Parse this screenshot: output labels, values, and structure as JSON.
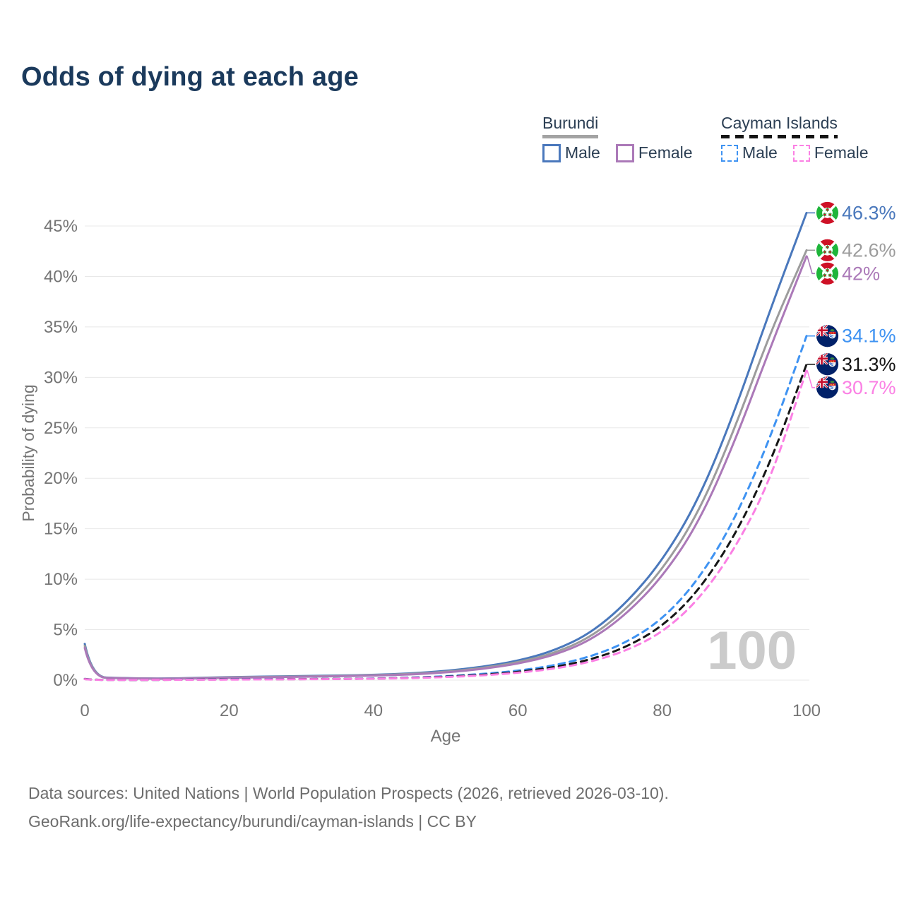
{
  "title": "Odds of dying at each age",
  "legend": {
    "groups": [
      {
        "country": "Burundi",
        "line_style": "solid",
        "underline_color": "#a3a3a3",
        "items": [
          {
            "label": "Male",
            "color": "#4a78bc"
          },
          {
            "label": "Female",
            "color": "#ab79b8"
          }
        ]
      },
      {
        "country": "Cayman Islands",
        "line_style": "dashed",
        "underline_color": "#141414",
        "items": [
          {
            "label": "Male",
            "color": "#3f93f2"
          },
          {
            "label": "Female",
            "color": "#fb80e4"
          }
        ]
      }
    ]
  },
  "chart_data": {
    "type": "line",
    "title": "Odds of dying at each age",
    "x_label": "Age",
    "y_label": "Probability of dying",
    "x_range": [
      0,
      100
    ],
    "y_range_pct": [
      0,
      45
    ],
    "grid": "horizontal",
    "x_tick_values": [
      0,
      20,
      40,
      60,
      80,
      100
    ],
    "x_tick_labels": [
      "0",
      "20",
      "40",
      "60",
      "80",
      "100"
    ],
    "y_tick_values": [
      0,
      5,
      10,
      15,
      20,
      25,
      30,
      35,
      40,
      45
    ],
    "y_tick_labels": [
      "0%",
      "5%",
      "10%",
      "15%",
      "20%",
      "25%",
      "30%",
      "35%",
      "40%",
      "45%"
    ],
    "age_watermark": "100",
    "ages": [
      0,
      1,
      5,
      10,
      15,
      20,
      25,
      30,
      35,
      40,
      45,
      50,
      55,
      60,
      65,
      70,
      75,
      80,
      85,
      90,
      95,
      100
    ],
    "series": [
      {
        "name": "Burundi Male",
        "country": "Burundi",
        "group": "Male",
        "flag": "burundi",
        "line_style": "solid",
        "color": "#4a78bc",
        "end_label": "46.3%",
        "values": [
          3.6,
          0.3,
          0.2,
          0.15,
          0.2,
          0.3,
          0.35,
          0.4,
          0.45,
          0.52,
          0.65,
          0.9,
          1.3,
          1.9,
          2.9,
          4.6,
          7.6,
          11.8,
          17.8,
          26.5,
          36.8,
          46.3
        ]
      },
      {
        "name": "Burundi All",
        "country": "Burundi",
        "group": "All",
        "flag": "burundi",
        "line_style": "solid",
        "color": "#9c9c9c",
        "end_label": "42.6%",
        "values": [
          3.4,
          0.28,
          0.19,
          0.14,
          0.18,
          0.27,
          0.32,
          0.36,
          0.41,
          0.48,
          0.6,
          0.82,
          1.18,
          1.75,
          2.65,
          4.2,
          7.0,
          10.9,
          16.5,
          24.8,
          34.5,
          42.6
        ]
      },
      {
        "name": "Burundi Female",
        "country": "Burundi",
        "group": "Female",
        "flag": "burundi",
        "line_style": "solid",
        "color": "#ab79b8",
        "end_label": "42%",
        "values": [
          3.2,
          0.26,
          0.18,
          0.13,
          0.16,
          0.23,
          0.28,
          0.33,
          0.38,
          0.44,
          0.55,
          0.75,
          1.08,
          1.62,
          2.45,
          3.9,
          6.5,
          10.2,
          15.5,
          23.5,
          33.0,
          42.0
        ]
      },
      {
        "name": "Cayman Islands Male",
        "country": "Cayman Islands",
        "group": "Male",
        "flag": "cayman",
        "line_style": "dashed",
        "color": "#3f93f2",
        "end_label": "34.1%",
        "values": [
          0.12,
          0.03,
          0.02,
          0.02,
          0.06,
          0.09,
          0.1,
          0.11,
          0.13,
          0.16,
          0.24,
          0.38,
          0.6,
          0.92,
          1.45,
          2.3,
          3.7,
          6.0,
          9.9,
          15.8,
          24.0,
          34.1
        ]
      },
      {
        "name": "Cayman Islands All",
        "country": "Cayman Islands",
        "group": "All",
        "flag": "cayman",
        "line_style": "dashed",
        "color": "#161616",
        "end_label": "31.3%",
        "values": [
          0.11,
          0.03,
          0.02,
          0.02,
          0.05,
          0.07,
          0.08,
          0.1,
          0.12,
          0.15,
          0.21,
          0.33,
          0.52,
          0.8,
          1.27,
          2.0,
          3.25,
          5.3,
          8.8,
          14.2,
          21.5,
          31.3
        ]
      },
      {
        "name": "Cayman Islands Female",
        "country": "Cayman Islands",
        "group": "Female",
        "flag": "cayman",
        "line_style": "dashed",
        "color": "#fb80e4",
        "end_label": "30.7%",
        "values": [
          0.1,
          0.02,
          0.02,
          0.02,
          0.04,
          0.05,
          0.07,
          0.09,
          0.11,
          0.14,
          0.19,
          0.3,
          0.46,
          0.72,
          1.12,
          1.78,
          2.9,
          4.7,
          7.9,
          12.9,
          19.8,
          30.7
        ]
      }
    ]
  },
  "footer": {
    "line1": "Data sources: United Nations | World Population Prospects (2026, retrieved 2026-03-10).",
    "line2": "GeoRank.org/life-expectancy/burundi/cayman-islands | CC BY"
  }
}
